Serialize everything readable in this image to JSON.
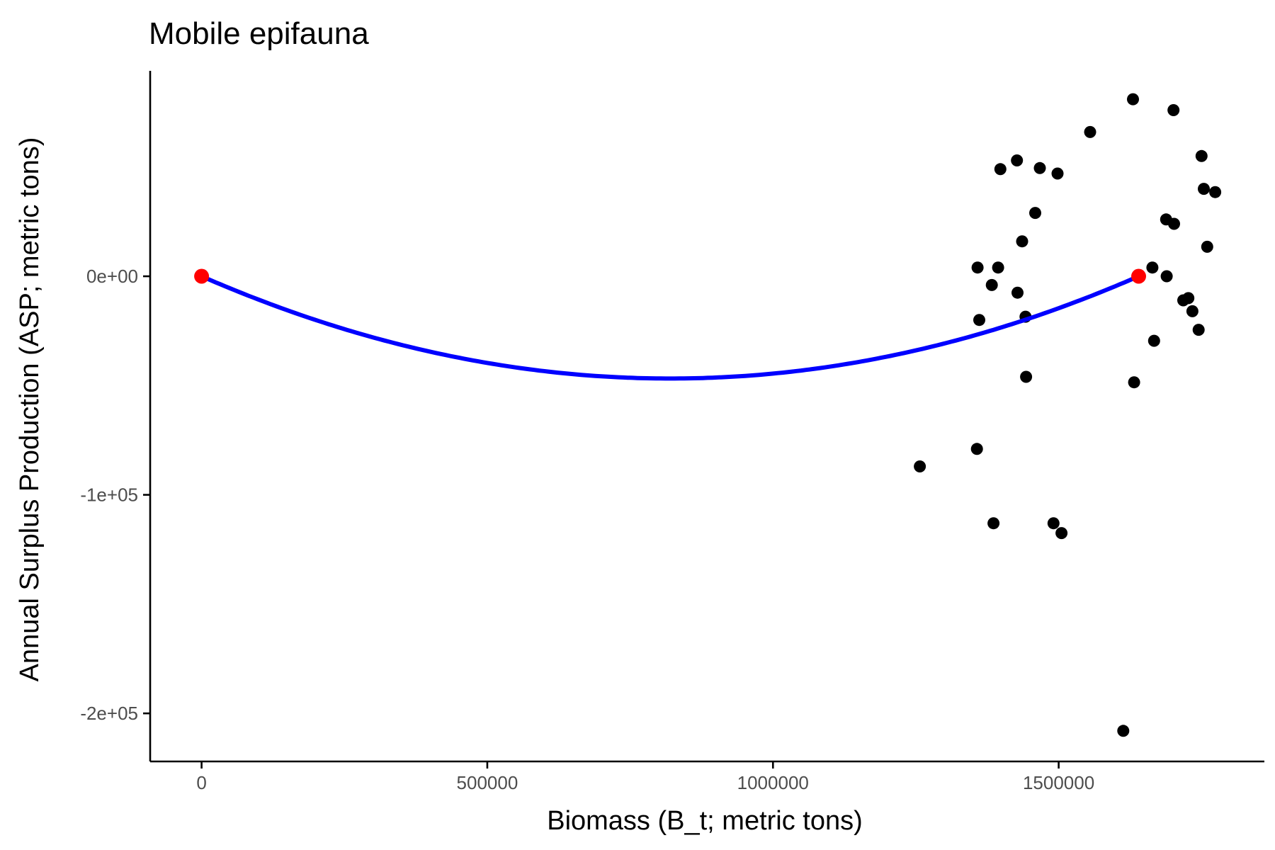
{
  "chart_data": {
    "type": "scatter",
    "title": "Mobile epifauna",
    "xlabel": "Biomass (B_t; metric tons)",
    "ylabel": "Annual Surplus Production (ASP; metric tons)",
    "xlim": [
      -90000,
      1860000
    ],
    "ylim": [
      -222000,
      94000
    ],
    "x_ticks": [
      {
        "value": 0,
        "label": "0"
      },
      {
        "value": 500000,
        "label": "500000"
      },
      {
        "value": 1000000,
        "label": "1000000"
      },
      {
        "value": 1500000,
        "label": "1500000"
      }
    ],
    "y_ticks": [
      {
        "value": 0,
        "label": "0e+00"
      },
      {
        "value": -100000,
        "label": "-1e+05"
      },
      {
        "value": -200000,
        "label": "-2e+05"
      }
    ],
    "grid": false,
    "legend": "none",
    "colors": {
      "points": "#000000",
      "curve": "#0000ff",
      "endpoints": "#ff0000",
      "axis": "#000000",
      "tick_label": "#4d4d4d"
    },
    "series": [
      {
        "kind": "points",
        "x": [
          1257000,
          1357000,
          1358000,
          1361000,
          1383000,
          1386000,
          1394000,
          1398000,
          1427000,
          1428000,
          1436000,
          1442000,
          1443000,
          1459000,
          1467000,
          1491000,
          1498000,
          1505000,
          1555000,
          1613000,
          1630000,
          1632000,
          1664000,
          1667000,
          1688000,
          1689000,
          1701000,
          1702000,
          1718000,
          1727000,
          1734000,
          1745000,
          1750000,
          1754000,
          1760000,
          1774000
        ],
        "y": [
          -87000,
          -79000,
          4000,
          -20000,
          -4000,
          -113000,
          4000,
          49000,
          53000,
          -7500,
          16000,
          -18500,
          -46000,
          29000,
          49500,
          -113000,
          47000,
          -117500,
          66000,
          -208000,
          81000,
          -48500,
          4000,
          -29500,
          26000,
          0,
          76000,
          24000,
          -11000,
          -10000,
          -16000,
          -24500,
          55000,
          40000,
          13500,
          38500
        ]
      },
      {
        "kind": "curve",
        "equation": "ASP = r * B * (1 - B / K)",
        "r": -0.1141,
        "K": 1640000
      },
      {
        "kind": "endpoints",
        "x": [
          0,
          1640000
        ],
        "y": [
          0,
          0
        ]
      }
    ]
  }
}
